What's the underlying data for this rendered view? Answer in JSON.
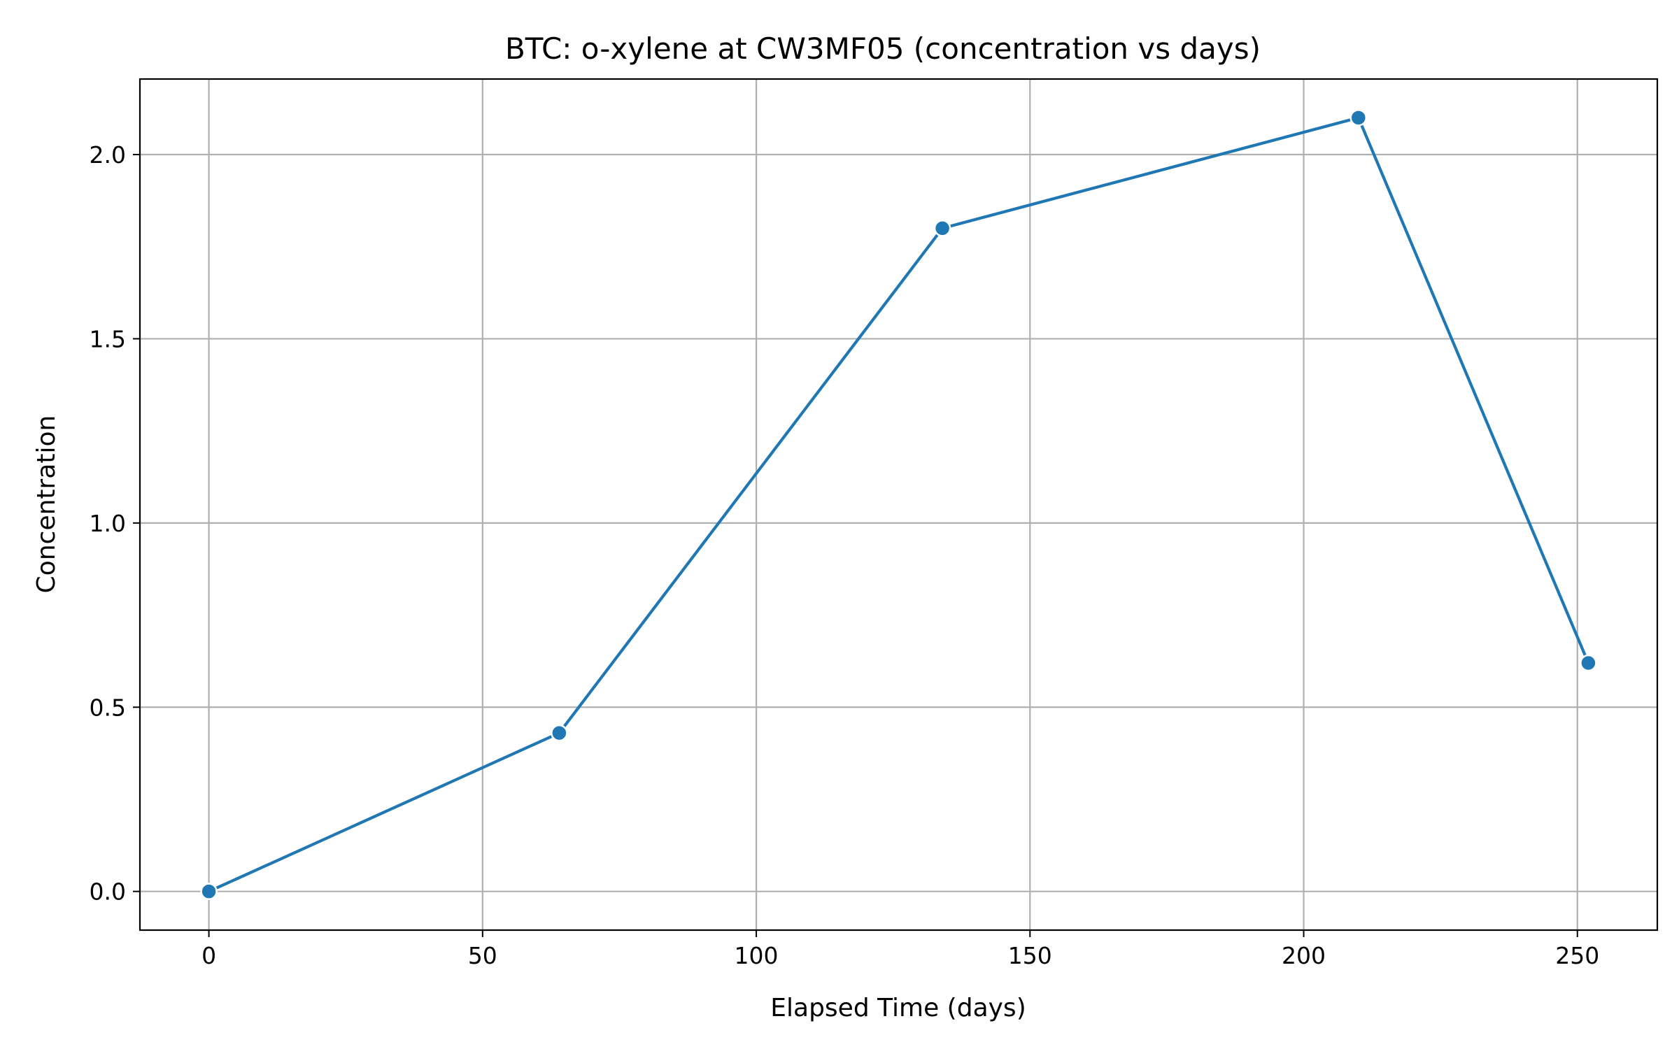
{
  "chart_data": {
    "type": "line",
    "title": "BTC: o-xylene at CW3MF05 (concentration vs days)",
    "xlabel": "Elapsed Time (days)",
    "ylabel": "Concentration",
    "xlim": [
      -12.6,
      264.6
    ],
    "ylim": [
      -0.105,
      2.205
    ],
    "xticks": [
      0,
      50,
      100,
      150,
      200,
      250
    ],
    "xtick_labels": [
      "0",
      "50",
      "100",
      "150",
      "200",
      "250"
    ],
    "yticks": [
      0.0,
      0.5,
      1.0,
      1.5,
      2.0
    ],
    "ytick_labels": [
      "0.0",
      "0.5",
      "1.0",
      "1.5",
      "2.0"
    ],
    "grid": true,
    "legend": null,
    "series": [
      {
        "color": "#1f77b4",
        "marker": "circle",
        "x": [
          0,
          64,
          134,
          210,
          252
        ],
        "y": [
          0.0,
          0.43,
          1.8,
          2.1,
          0.62
        ]
      }
    ]
  }
}
